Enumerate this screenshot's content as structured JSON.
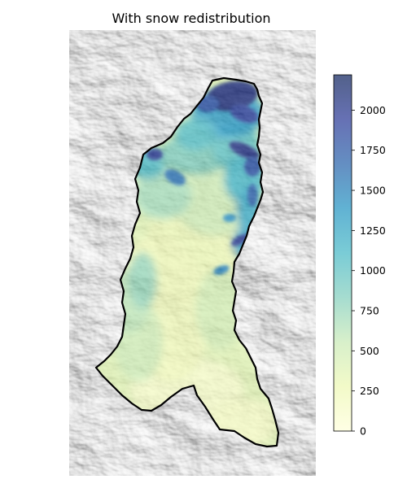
{
  "chart_data": {
    "type": "heatmap",
    "title": "With snow redistribution",
    "colorbar": {
      "vmin": 0,
      "vmax": 2220,
      "ticks": [
        0,
        250,
        500,
        750,
        1000,
        1250,
        1500,
        1750,
        2000
      ],
      "tick_labels": [
        "0",
        "250",
        "500",
        "750",
        "1000",
        "1250",
        "1500",
        "1750",
        "2000"
      ],
      "colormap": "YlGnBu",
      "colormap_stops": [
        "#ffffd9",
        "#edf8b1",
        "#c7e9b4",
        "#7fcdbb",
        "#41b6c4",
        "#1d91c0",
        "#225ea8",
        "#253494",
        "#081d58"
      ],
      "alpha": 0.7
    },
    "grid": false,
    "legend": "colorbar-right",
    "basemap": "grayscale hillshade",
    "outline_color": "#000000"
  }
}
